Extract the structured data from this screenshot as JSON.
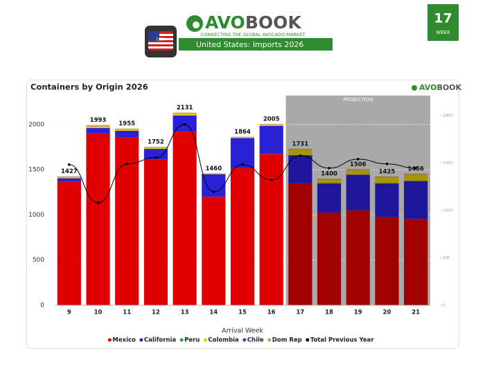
{
  "header": {
    "logo_a": "AVO",
    "logo_b": "BOOK",
    "tagline": "CONNECTING THE GLOBAL AVOCADO MARKET",
    "subtitle": "United States: Imports 2026",
    "flag_label": "USA",
    "week_number": "17",
    "week_label": "WEEK"
  },
  "chart_data": {
    "type": "bar",
    "stacked": true,
    "title": "Containers by Origin 2026",
    "x_label": "Arrival Week",
    "projection_label": "PROJECTION",
    "categories": [
      "9",
      "10",
      "11",
      "12",
      "13",
      "14",
      "15",
      "16",
      "17",
      "18",
      "19",
      "20",
      "21"
    ],
    "series": [
      {
        "name": "Mexico",
        "color": "#e00000",
        "values": [
          1365,
          1900,
          1860,
          1615,
          1920,
          1200,
          1520,
          1675,
          1350,
          1025,
          1050,
          975,
          955
        ]
      },
      {
        "name": "California",
        "color": "#2a20d8",
        "values": [
          40,
          60,
          70,
          115,
          180,
          250,
          330,
          310,
          310,
          325,
          395,
          375,
          420
        ]
      },
      {
        "name": "Peru",
        "color": "#22a832",
        "values": [
          0,
          0,
          0,
          0,
          0,
          0,
          0,
          0,
          0,
          0,
          0,
          0,
          0
        ]
      },
      {
        "name": "Colombia",
        "color": "#e8d000",
        "values": [
          10,
          13,
          10,
          10,
          15,
          5,
          6,
          10,
          60,
          40,
          50,
          65,
          70
        ]
      },
      {
        "name": "Chile",
        "color": "#7030a0",
        "values": [
          0,
          0,
          0,
          0,
          0,
          0,
          0,
          0,
          0,
          0,
          0,
          0,
          0
        ]
      },
      {
        "name": "Dom Rep",
        "color": "#c8a060",
        "values": [
          12,
          20,
          15,
          12,
          16,
          5,
          8,
          10,
          11,
          10,
          11,
          10,
          11
        ]
      },
      {
        "name": "Total Previous Year",
        "color": "#000000",
        "type": "line",
        "axis": "y2",
        "values": [
          1482,
          1080,
          1490,
          1555,
          1905,
          1197,
          1482,
          1321,
          1577,
          1445,
          1540,
          1490,
          1445
        ]
      }
    ],
    "totals": [
      1427,
      1993,
      1955,
      1752,
      2131,
      1460,
      1864,
      2005,
      1731,
      1400,
      1506,
      1425,
      1456
    ],
    "ylim": [
      0,
      2320
    ],
    "yticks": [
      0,
      500,
      1000,
      1500,
      2000
    ],
    "y2lim": [
      0,
      2210
    ],
    "y2ticks": [
      0,
      500,
      1000,
      1500,
      2000
    ],
    "grid": true
  }
}
